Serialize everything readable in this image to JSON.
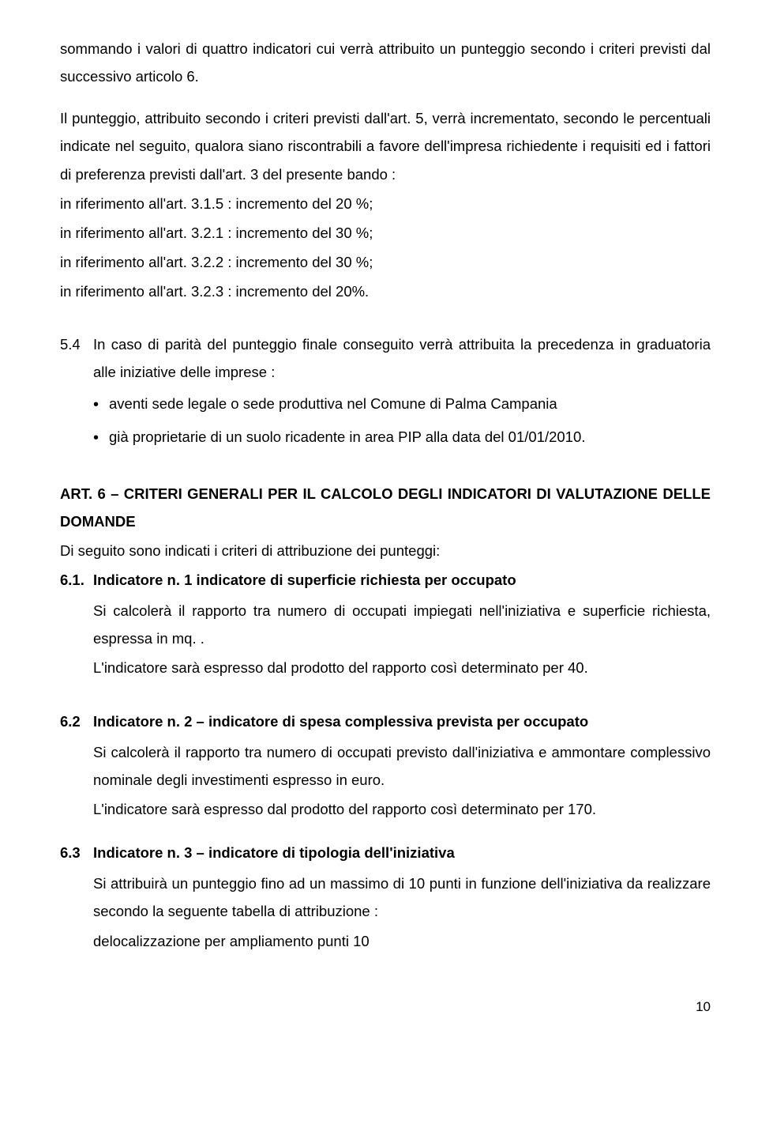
{
  "p1": "sommando i valori di quattro  indicatori cui verrà attribuito un punteggio secondo i criteri previsti dal successivo articolo 6.",
  "p2": "Il punteggio, attribuito secondo i criteri previsti dall'art. 5, verrà incrementato, secondo le percentuali indicate nel seguito, qualora siano riscontrabili a favore dell'impresa richiedente i requisiti ed i fattori di preferenza previsti dall'art. 3 del presente bando :",
  "l1": "in riferimento all'art. 3.1.5 : incremento del 20 %;",
  "l2": "in riferimento all'art. 3.2.1 : incremento del 30 %;",
  "l3": "in riferimento all'art. 3.2.2 : incremento del 30 %;",
  "l4": "in riferimento all'art. 3.2.3 : incremento del 20%.",
  "n54_num": "5.4",
  "n54_body": "In caso di parità del punteggio finale conseguito verrà attribuita la precedenza in graduatoria alle iniziative delle imprese :",
  "b1": "aventi sede legale o sede produttiva nel Comune di Palma Campania",
  "b2": "già proprietarie di un suolo ricadente in area PIP alla data del 01/01/2010.",
  "art6_head": "ART. 6 – CRITERI GENERALI PER IL CALCOLO DEGLI INDICATORI DI VALUTAZIONE DELLE DOMANDE",
  "art6_intro": "Di seguito sono indicati i criteri di attribuzione dei punteggi:",
  "s61_num": "6.1.",
  "s61_title": "Indicatore n. 1 indicatore di superficie richiesta per occupato",
  "s61_p1": "Si calcolerà il rapporto tra numero di occupati impiegati nell'iniziativa e superficie richiesta, espressa in mq. .",
  "s61_p2": "L'indicatore sarà espresso dal prodotto del rapporto così determinato per 40.",
  "s62_num": "6.2",
  "s62_title": "Indicatore n. 2 – indicatore di spesa complessiva prevista per occupato",
  "s62_p1": "Si calcolerà il rapporto tra numero di occupati previsto dall'iniziativa e ammontare complessivo nominale degli investimenti espresso in euro.",
  "s62_p2": "L'indicatore sarà espresso dal prodotto del rapporto così determinato per 170.",
  "s63_num": "6.3",
  "s63_title": "Indicatore n. 3 – indicatore di tipologia dell'iniziativa",
  "s63_p1": "Si attribuirà un punteggio fino ad un massimo di 10 punti in funzione dell'iniziativa da realizzare secondo la seguente tabella di attribuzione :",
  "s63_p2": "delocalizzazione per ampliamento punti 10",
  "page_num": "10"
}
